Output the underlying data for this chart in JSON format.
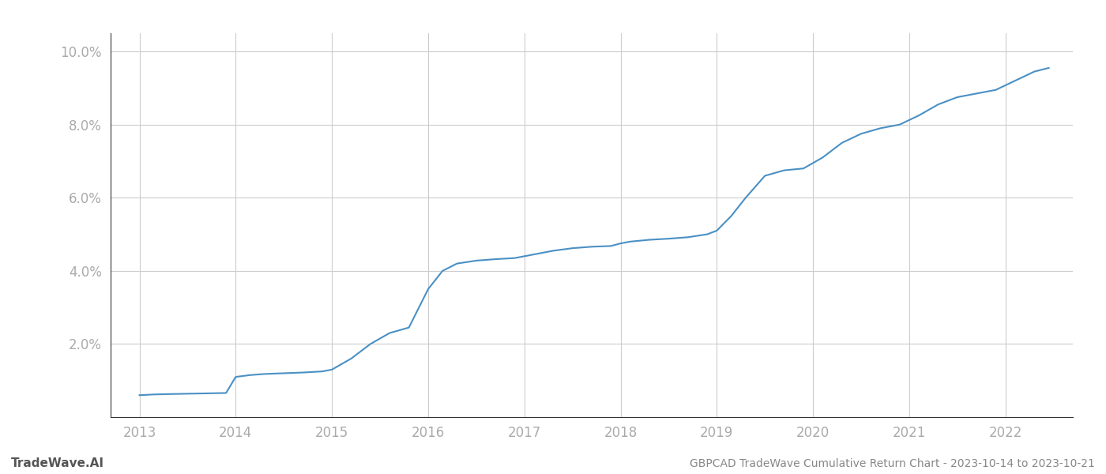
{
  "title": "GBPCAD TradeWave Cumulative Return Chart - 2023-10-14 to 2023-10-21",
  "watermark": "TradeWave.AI",
  "line_color": "#4a90c4",
  "background_color": "#ffffff",
  "grid_color": "#cccccc",
  "x_years": [
    2013,
    2014,
    2015,
    2016,
    2017,
    2018,
    2019,
    2020,
    2021,
    2022
  ],
  "x_data": [
    2013.0,
    2013.15,
    2013.3,
    2013.5,
    2013.7,
    2013.9,
    2014.0,
    2014.15,
    2014.3,
    2014.5,
    2014.7,
    2014.9,
    2015.0,
    2015.2,
    2015.4,
    2015.6,
    2015.8,
    2016.0,
    2016.15,
    2016.3,
    2016.5,
    2016.7,
    2016.9,
    2017.1,
    2017.3,
    2017.5,
    2017.7,
    2017.9,
    2018.0,
    2018.1,
    2018.3,
    2018.5,
    2018.7,
    2018.9,
    2019.0,
    2019.15,
    2019.3,
    2019.5,
    2019.7,
    2019.9,
    2020.1,
    2020.3,
    2020.5,
    2020.7,
    2020.9,
    2021.1,
    2021.3,
    2021.5,
    2021.7,
    2021.9,
    2022.1,
    2022.3,
    2022.45
  ],
  "y_data": [
    0.6,
    0.62,
    0.63,
    0.64,
    0.65,
    0.66,
    1.1,
    1.15,
    1.18,
    1.2,
    1.22,
    1.25,
    1.3,
    1.6,
    2.0,
    2.3,
    2.45,
    3.5,
    4.0,
    4.2,
    4.28,
    4.32,
    4.35,
    4.45,
    4.55,
    4.62,
    4.66,
    4.68,
    4.75,
    4.8,
    4.85,
    4.88,
    4.92,
    5.0,
    5.1,
    5.5,
    6.0,
    6.6,
    6.75,
    6.8,
    7.1,
    7.5,
    7.75,
    7.9,
    8.0,
    8.25,
    8.55,
    8.75,
    8.85,
    8.95,
    9.2,
    9.45,
    9.55
  ],
  "yticks": [
    2.0,
    4.0,
    6.0,
    8.0,
    10.0
  ],
  "ytick_labels": [
    "2.0%",
    "4.0%",
    "6.0%",
    "8.0%",
    "10.0%"
  ],
  "ylim": [
    0.0,
    10.5
  ],
  "xlim": [
    2012.7,
    2022.7
  ],
  "title_fontsize": 10,
  "watermark_fontsize": 11,
  "tick_fontsize": 12,
  "line_width": 1.5,
  "spine_color": "#333333"
}
